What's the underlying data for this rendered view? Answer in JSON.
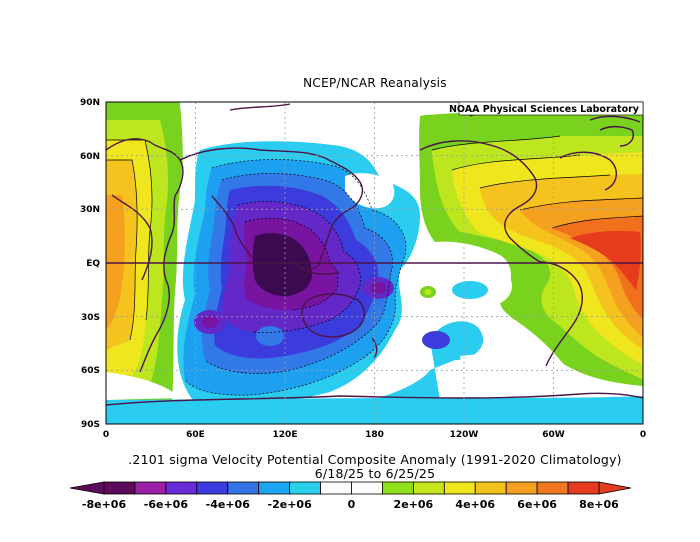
{
  "title": "NCEP/NCAR Reanalysis",
  "lab_label": "NOAA Physical Sciences Laboratory",
  "caption": {
    "line1": ".2101 sigma Velocity Potential  Composite Anomaly (1991-2020 Climatology)",
    "line2": "6/18/25  to 6/25/25"
  },
  "axes": {
    "lat_labels": [
      "90N",
      "60N",
      "30N",
      "EQ",
      "30S",
      "60S",
      "90S"
    ],
    "lon_labels": [
      "0",
      "60E",
      "120E",
      "180",
      "120W",
      "60W",
      "0"
    ]
  },
  "colorbar": {
    "labels": [
      "-8e+06",
      "-6e+06",
      "-4e+06",
      "-2e+06",
      "0",
      "2e+06",
      "4e+06",
      "6e+06",
      "8e+06"
    ],
    "colors": [
      "#5c0a5c",
      "#9b1fa6",
      "#6a2bd8",
      "#3c3ce0",
      "#3273e6",
      "#1ea6f0",
      "#2ad0ee",
      "#ffffff",
      "#ffffff",
      "#8fe01e",
      "#c8e61e",
      "#f0e61e",
      "#f5c31e",
      "#f5a01e",
      "#f0781e",
      "#e63c1e"
    ]
  },
  "map_colors": {
    "neg_deep": "#3c0a50",
    "neg_purple": "#7814a0",
    "neg_violet": "#6428c8",
    "neg_blue": "#3c3cdc",
    "neg_mid": "#3278e6",
    "neg_light": "#1ea0f0",
    "neg_cyan": "#2acdf0",
    "pos_green": "#78d21e",
    "pos_lime": "#bee61e",
    "pos_yellow": "#f0e61e",
    "pos_gold": "#f5c31e",
    "pos_orange": "#f5a01e",
    "pos_dark_orange": "#f0701e",
    "pos_red": "#e63c1e",
    "coast": "#4b1446"
  }
}
